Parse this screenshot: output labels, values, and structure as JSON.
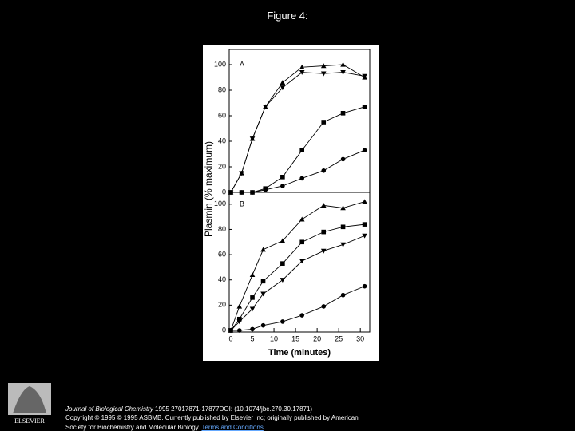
{
  "title": "Figure 4:",
  "chart_data": [
    {
      "type": "line",
      "panel_label": "A",
      "ylabel": "Plasmin (% maximum)",
      "x": [
        0,
        2.5,
        5,
        8,
        12,
        16.5,
        21.5,
        26,
        31
      ],
      "xlim": [
        0,
        32
      ],
      "ylim": [
        0,
        110
      ],
      "yticks": [
        0,
        20,
        40,
        60,
        80,
        100
      ],
      "series": [
        {
          "marker": "triangle-up",
          "color": "#000000",
          "values": [
            0,
            15,
            42,
            67,
            86,
            98,
            99,
            100,
            90
          ]
        },
        {
          "marker": "triangle-down",
          "color": "#000000",
          "values": [
            0,
            15,
            42,
            67,
            82,
            94,
            93,
            94,
            91
          ]
        },
        {
          "marker": "square",
          "color": "#000000",
          "values": [
            0,
            0,
            0,
            3,
            12,
            33,
            55,
            62,
            67
          ]
        },
        {
          "marker": "circle",
          "color": "#000000",
          "values": [
            0,
            0,
            0,
            2,
            5,
            11,
            17,
            26,
            33
          ]
        }
      ]
    },
    {
      "type": "line",
      "panel_label": "B",
      "xlabel": "Time (minutes)",
      "x": [
        0,
        2,
        5,
        7.5,
        12,
        16.5,
        21.5,
        26,
        31
      ],
      "xlim": [
        0,
        32
      ],
      "xticks": [
        0,
        5,
        10,
        15,
        20,
        25,
        30
      ],
      "ylim": [
        0,
        110
      ],
      "yticks": [
        0,
        20,
        40,
        60,
        80,
        100
      ],
      "series": [
        {
          "marker": "triangle-up",
          "color": "#000000",
          "values": [
            0,
            19,
            44,
            64,
            71,
            88,
            99,
            97,
            102
          ]
        },
        {
          "marker": "square",
          "color": "#000000",
          "values": [
            0,
            9,
            26,
            39,
            53,
            70,
            78,
            82,
            84
          ]
        },
        {
          "marker": "triangle-down",
          "color": "#000000",
          "values": [
            0,
            7,
            17,
            29,
            40,
            55,
            63,
            68,
            75
          ]
        },
        {
          "marker": "circle",
          "color": "#000000",
          "values": [
            0,
            0,
            1,
            4,
            7,
            12,
            19,
            28,
            35
          ]
        }
      ]
    }
  ],
  "footer": {
    "journal": "Journal of Biological Chemistry",
    "citation": " 1995 27017871-17877DOI: (10.1074/jbc.270.30.17871)",
    "copyright": "Copyright © 1995 © 1995 ASBMB. Currently published by Elsevier Inc; originally published by American",
    "society": "Society for Biochemistry and Molecular Biology.",
    "link": "Terms and Conditions"
  },
  "logo": "ELSEVIER"
}
